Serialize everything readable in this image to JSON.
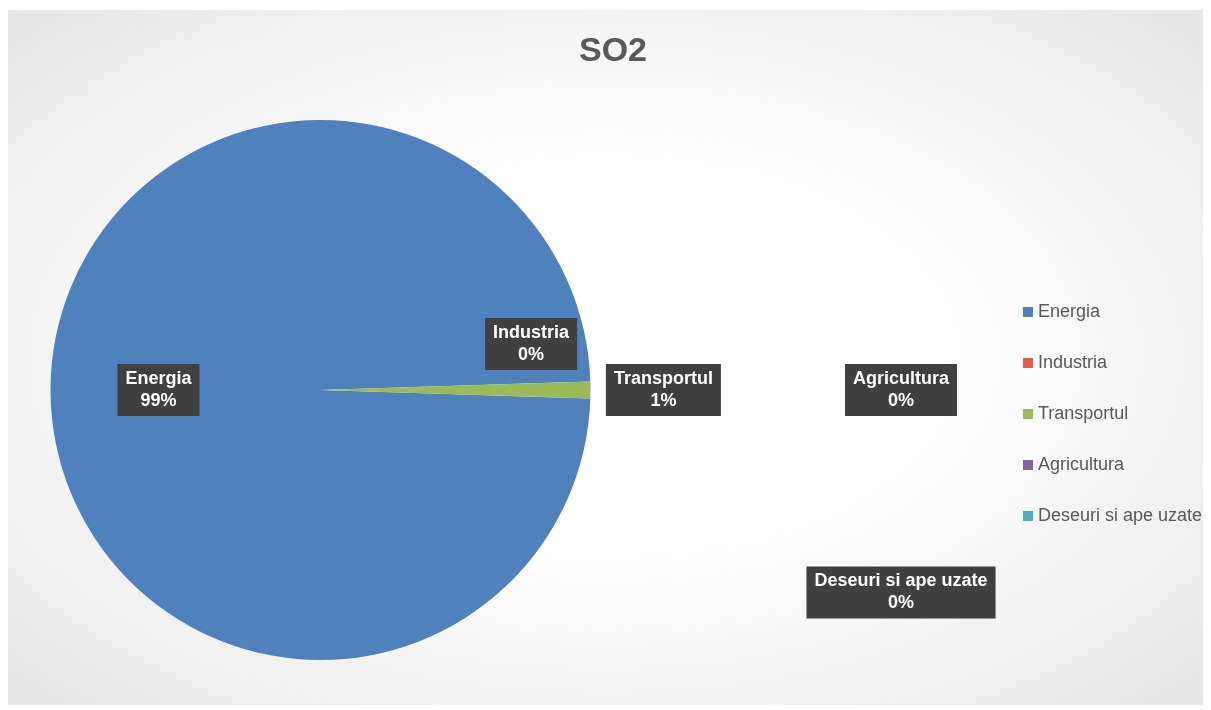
{
  "chart_data": {
    "type": "pie",
    "title": "SO2",
    "categories": [
      "Energia",
      "Industria",
      "Transportul",
      "Agricultura",
      "Deseuri si ape uzate"
    ],
    "values": [
      99,
      0,
      1,
      0,
      0
    ],
    "colors": [
      "#4f81bd",
      "#e0604a",
      "#9bbb59",
      "#8064a2",
      "#4bacc6"
    ],
    "value_labels": [
      "99%",
      "0%",
      "1%",
      "0%",
      "0%"
    ],
    "legend": "right"
  }
}
